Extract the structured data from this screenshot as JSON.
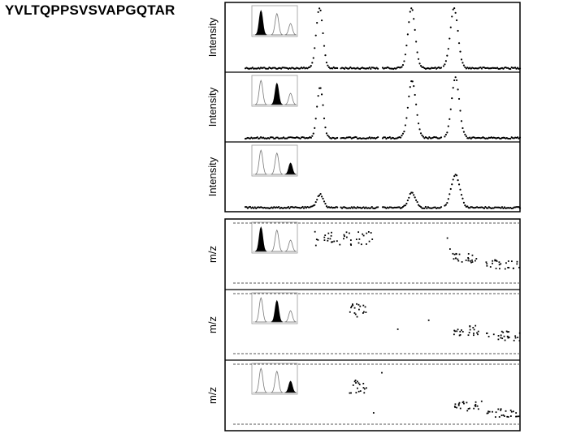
{
  "title": "YVLTQPPSVSVAPGQTAR",
  "chart_data": {
    "type": "scatter",
    "title": "YVLTQPPSVSVAPGQTAR",
    "groups": [
      {
        "ylabel": "Intensity",
        "panels": [
          {
            "ylabel": "Intensity",
            "highlight": 0,
            "peaks": [
              {
                "center": 0.27,
                "width": 0.012,
                "height": 1.0
              },
              {
                "center": 0.605,
                "width": 0.013,
                "height": 1.0
              },
              {
                "center": 0.76,
                "width": 0.014,
                "height": 1.0
              }
            ]
          },
          {
            "ylabel": "Intensity",
            "highlight": 1,
            "peaks": [
              {
                "center": 0.272,
                "width": 0.011,
                "height": 0.85
              },
              {
                "center": 0.607,
                "width": 0.014,
                "height": 0.95
              },
              {
                "center": 0.765,
                "width": 0.014,
                "height": 1.0
              }
            ]
          },
          {
            "ylabel": "Intensity",
            "highlight": 2,
            "peaks": [
              {
                "center": 0.272,
                "width": 0.012,
                "height": 0.22
              },
              {
                "center": 0.607,
                "width": 0.013,
                "height": 0.25
              },
              {
                "center": 0.765,
                "width": 0.016,
                "height": 0.55
              }
            ]
          }
        ]
      },
      {
        "ylabel": "m/z",
        "panels": [
          {
            "ylabel": "m/z",
            "highlight": 0
          },
          {
            "ylabel": "m/z",
            "highlight": 1
          },
          {
            "ylabel": "m/z",
            "highlight": 2
          }
        ]
      }
    ],
    "inset": {
      "peak_heights": [
        0.85,
        0.75,
        0.4
      ]
    },
    "grid": false,
    "legend": "none"
  }
}
